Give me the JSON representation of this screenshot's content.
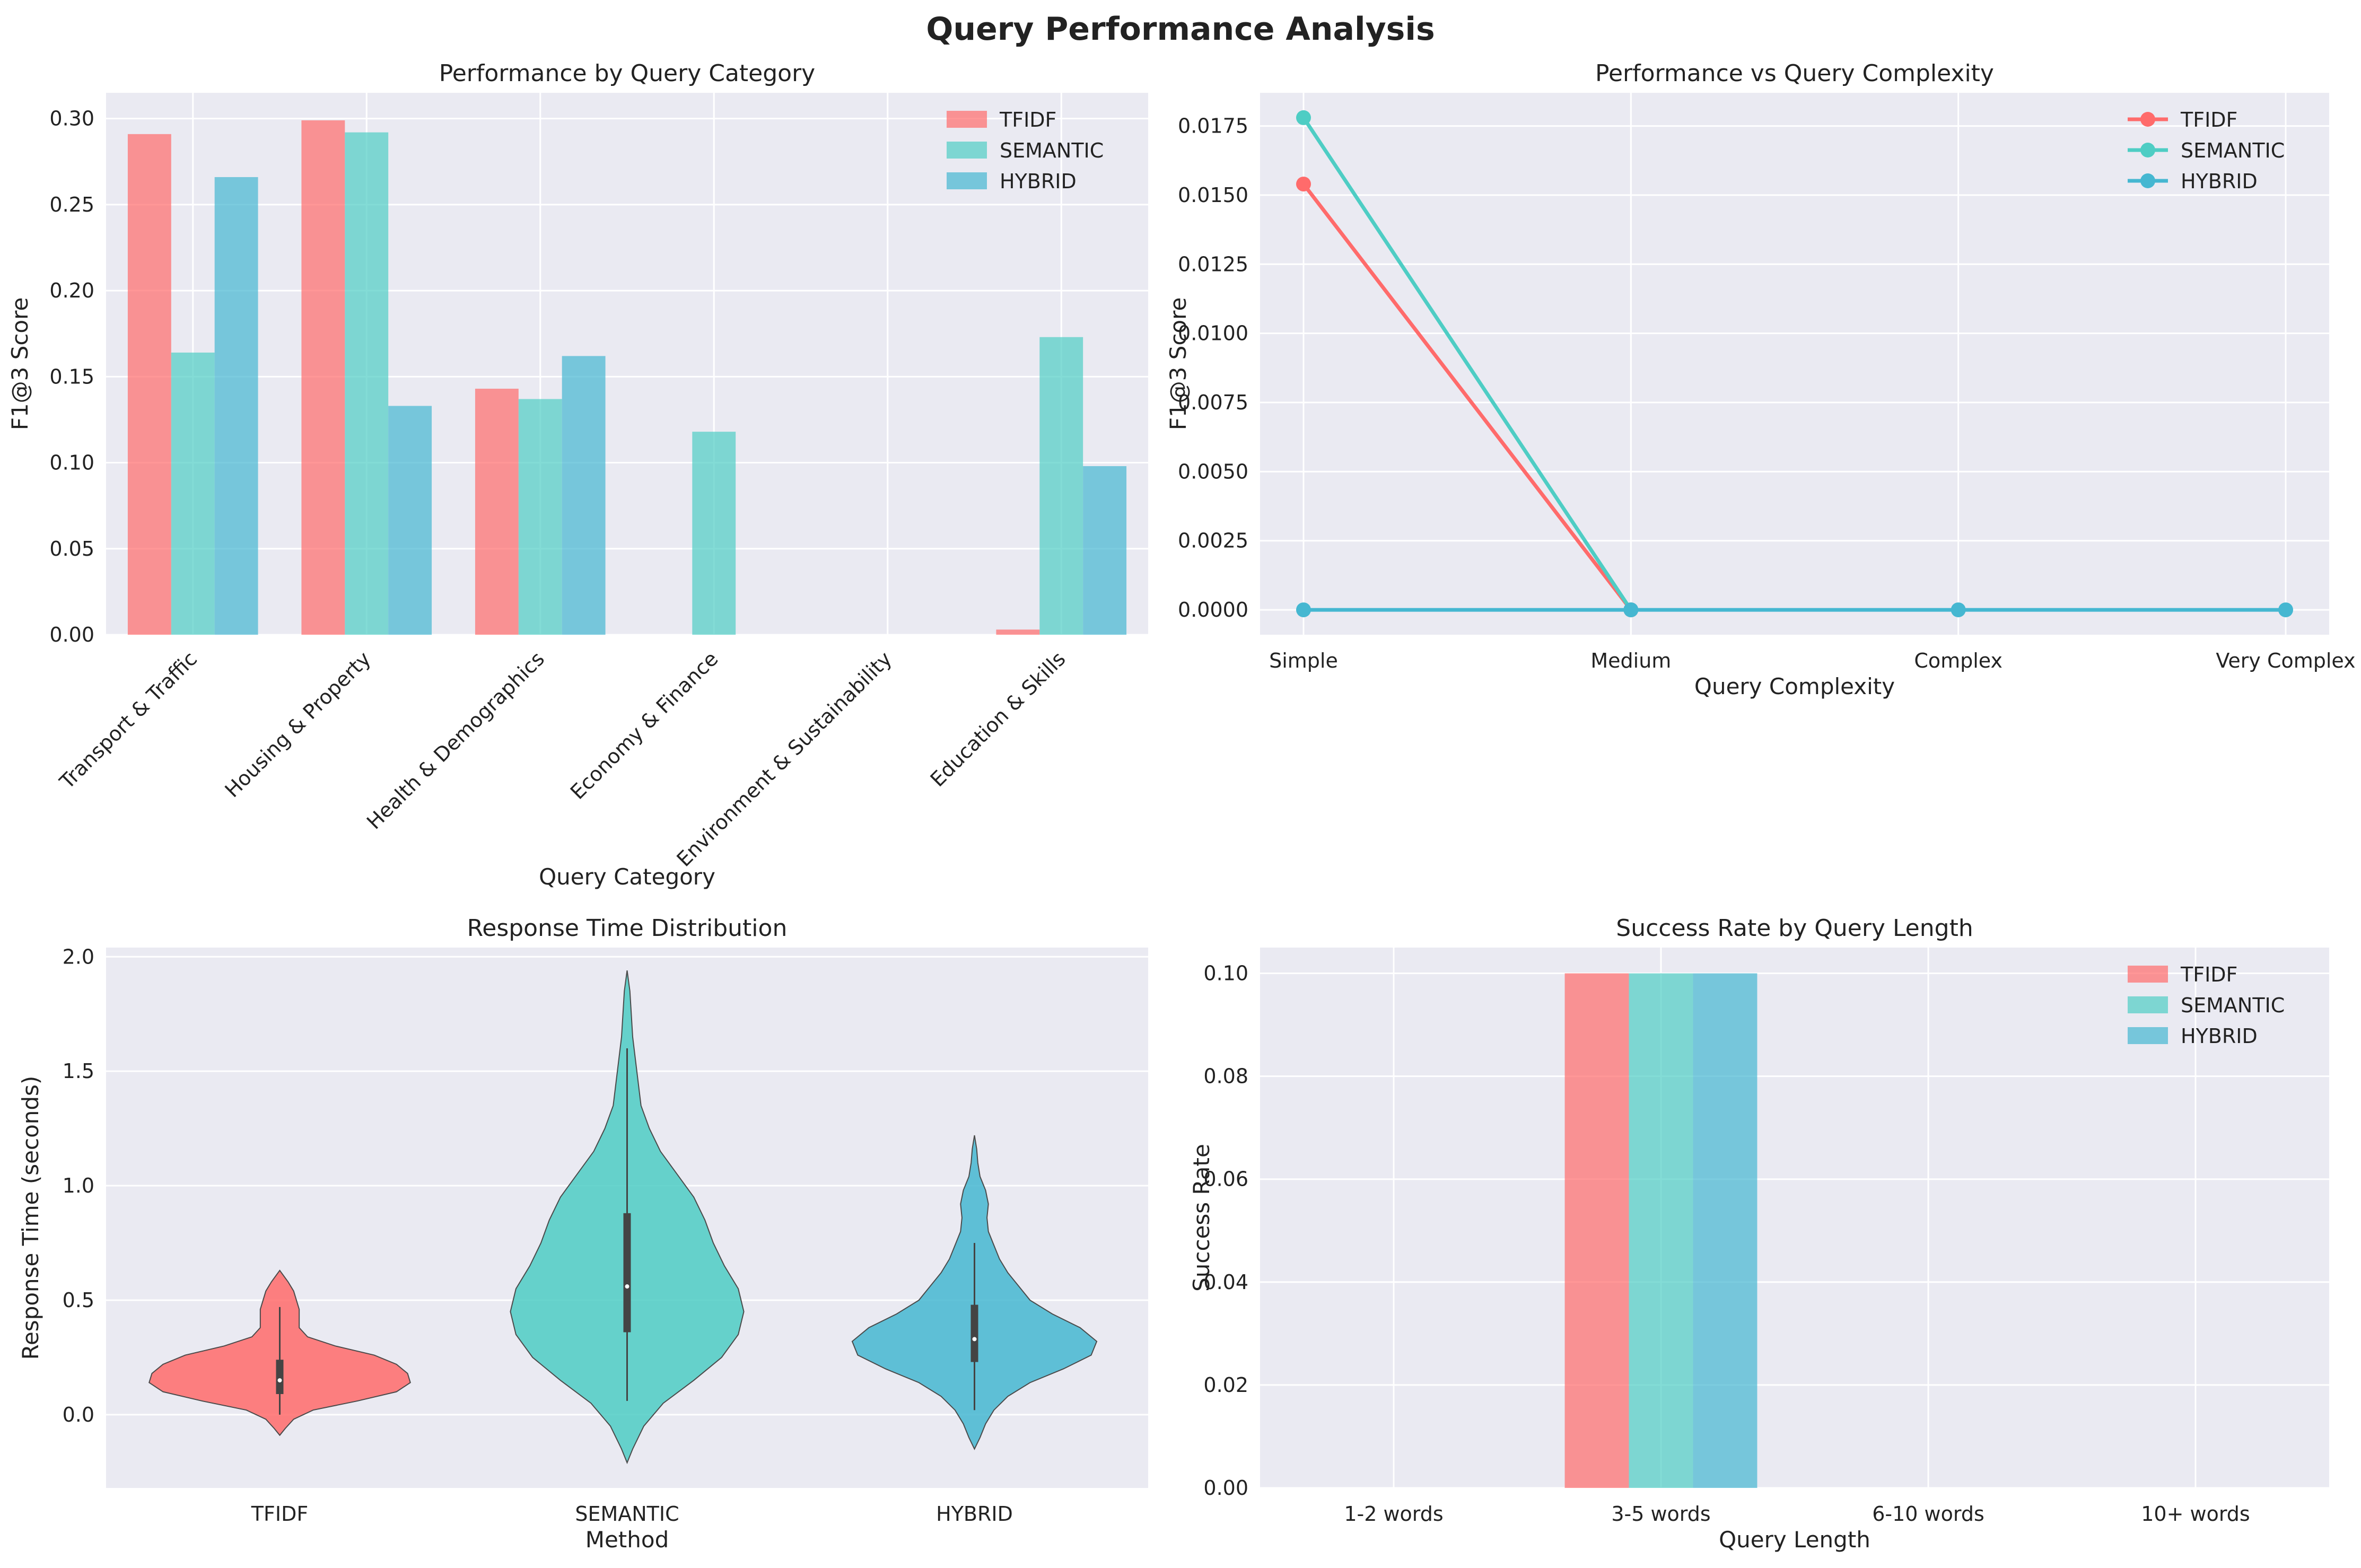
{
  "figure": {
    "title": "Query Performance Analysis",
    "colors": {
      "TFIDF": "#FF6B6B",
      "SEMANTIC": "#4ECDC4",
      "HYBRID": "#45B7D1",
      "panel_bg": "#EAEAF2",
      "grid": "#FFFFFF"
    }
  },
  "chart_data": [
    {
      "type": "bar",
      "title": "Performance by Query Category",
      "xlabel": "Query Category",
      "ylabel": "F1@3 Score",
      "categories": [
        "Transport & Traffic",
        "Housing & Property",
        "Health & Demographics",
        "Economy & Finance",
        "Environment & Sustainability",
        "Education & Skills"
      ],
      "series": [
        {
          "name": "TFIDF",
          "values": [
            0.291,
            0.299,
            0.143,
            0.0,
            0.0,
            0.003
          ]
        },
        {
          "name": "SEMANTIC",
          "values": [
            0.164,
            0.292,
            0.137,
            0.118,
            0.0,
            0.173
          ]
        },
        {
          "name": "HYBRID",
          "values": [
            0.266,
            0.133,
            0.162,
            0.0,
            0.0,
            0.098
          ]
        }
      ],
      "ylim": [
        0,
        0.315
      ],
      "yticks": [
        "0.00",
        "0.05",
        "0.10",
        "0.15",
        "0.20",
        "0.25",
        "0.30"
      ],
      "legend": "top-right",
      "grid": true
    },
    {
      "type": "line",
      "title": "Performance vs Query Complexity",
      "xlabel": "Query Complexity",
      "ylabel": "F1@3 Score",
      "categories": [
        "Simple",
        "Medium",
        "Complex",
        "Very Complex"
      ],
      "series": [
        {
          "name": "TFIDF",
          "values": [
            0.0154,
            0.0,
            null,
            null
          ]
        },
        {
          "name": "SEMANTIC",
          "values": [
            0.0178,
            0.0,
            null,
            null
          ]
        },
        {
          "name": "HYBRID",
          "values": [
            0.0,
            0.0,
            0.0,
            0.0
          ]
        }
      ],
      "ylim": [
        -0.0009,
        0.0187
      ],
      "yticks": [
        "0.0000",
        "0.0025",
        "0.0050",
        "0.0075",
        "0.0100",
        "0.0125",
        "0.0150",
        "0.0175"
      ],
      "legend": "top-right",
      "grid": true
    },
    {
      "type": "violin",
      "title": "Response Time Distribution",
      "xlabel": "Method",
      "ylabel": "Response Time (seconds)",
      "categories": [
        "TFIDF",
        "SEMANTIC",
        "HYBRID"
      ],
      "violins": [
        {
          "name": "TFIDF",
          "min": -0.09,
          "max": 0.63,
          "whisker": [
            0.0,
            0.47
          ],
          "q1": 0.09,
          "median": 0.15,
          "q3": 0.24,
          "profile": [
            [
              -0.09,
              0.0
            ],
            [
              -0.06,
              0.02
            ],
            [
              -0.02,
              0.05
            ],
            [
              0.02,
              0.12
            ],
            [
              0.06,
              0.28
            ],
            [
              0.1,
              0.42
            ],
            [
              0.14,
              0.47
            ],
            [
              0.18,
              0.46
            ],
            [
              0.22,
              0.42
            ],
            [
              0.26,
              0.34
            ],
            [
              0.3,
              0.2
            ],
            [
              0.34,
              0.1
            ],
            [
              0.38,
              0.07
            ],
            [
              0.42,
              0.07
            ],
            [
              0.46,
              0.07
            ],
            [
              0.5,
              0.06
            ],
            [
              0.54,
              0.05
            ],
            [
              0.58,
              0.03
            ],
            [
              0.63,
              0.0
            ]
          ]
        },
        {
          "name": "SEMANTIC",
          "min": -0.21,
          "max": 1.94,
          "whisker": [
            0.06,
            1.6
          ],
          "q1": 0.36,
          "median": 0.56,
          "q3": 0.88,
          "profile": [
            [
              -0.21,
              0.0
            ],
            [
              -0.15,
              0.02
            ],
            [
              -0.05,
              0.06
            ],
            [
              0.05,
              0.13
            ],
            [
              0.15,
              0.24
            ],
            [
              0.25,
              0.34
            ],
            [
              0.35,
              0.4
            ],
            [
              0.45,
              0.42
            ],
            [
              0.55,
              0.4
            ],
            [
              0.65,
              0.35
            ],
            [
              0.75,
              0.31
            ],
            [
              0.85,
              0.28
            ],
            [
              0.95,
              0.24
            ],
            [
              1.05,
              0.18
            ],
            [
              1.15,
              0.12
            ],
            [
              1.25,
              0.08
            ],
            [
              1.35,
              0.05
            ],
            [
              1.45,
              0.04
            ],
            [
              1.55,
              0.03
            ],
            [
              1.65,
              0.02
            ],
            [
              1.75,
              0.015
            ],
            [
              1.85,
              0.01
            ],
            [
              1.94,
              0.0
            ]
          ]
        },
        {
          "name": "HYBRID",
          "min": -0.15,
          "max": 1.22,
          "whisker": [
            0.02,
            0.75
          ],
          "q1": 0.23,
          "median": 0.33,
          "q3": 0.48,
          "profile": [
            [
              -0.15,
              0.0
            ],
            [
              -0.1,
              0.02
            ],
            [
              -0.04,
              0.04
            ],
            [
              0.02,
              0.07
            ],
            [
              0.08,
              0.12
            ],
            [
              0.14,
              0.2
            ],
            [
              0.2,
              0.32
            ],
            [
              0.26,
              0.42
            ],
            [
              0.32,
              0.44
            ],
            [
              0.38,
              0.38
            ],
            [
              0.44,
              0.28
            ],
            [
              0.5,
              0.2
            ],
            [
              0.56,
              0.16
            ],
            [
              0.62,
              0.12
            ],
            [
              0.68,
              0.09
            ],
            [
              0.74,
              0.07
            ],
            [
              0.8,
              0.05
            ],
            [
              0.86,
              0.045
            ],
            [
              0.92,
              0.05
            ],
            [
              0.98,
              0.04
            ],
            [
              1.04,
              0.02
            ],
            [
              1.1,
              0.012
            ],
            [
              1.16,
              0.008
            ],
            [
              1.22,
              0.0
            ]
          ]
        }
      ],
      "ylim": [
        -0.32,
        2.04
      ],
      "yticks": [
        "0.0",
        "0.5",
        "1.0",
        "1.5",
        "2.0"
      ],
      "grid": true
    },
    {
      "type": "bar",
      "title": "Success Rate by Query Length",
      "xlabel": "Query Length",
      "ylabel": "Success Rate",
      "categories": [
        "1-2 words",
        "3-5 words",
        "6-10 words",
        "10+ words"
      ],
      "series": [
        {
          "name": "TFIDF",
          "values": [
            0.0,
            0.1,
            0.0,
            0.0
          ]
        },
        {
          "name": "SEMANTIC",
          "values": [
            0.0,
            0.1,
            0.0,
            0.0
          ]
        },
        {
          "name": "HYBRID",
          "values": [
            0.0,
            0.1,
            0.0,
            0.0
          ]
        }
      ],
      "ylim": [
        0,
        0.105
      ],
      "yticks": [
        "0.00",
        "0.02",
        "0.04",
        "0.06",
        "0.08",
        "0.10"
      ],
      "legend": "top-right",
      "grid": true
    }
  ]
}
